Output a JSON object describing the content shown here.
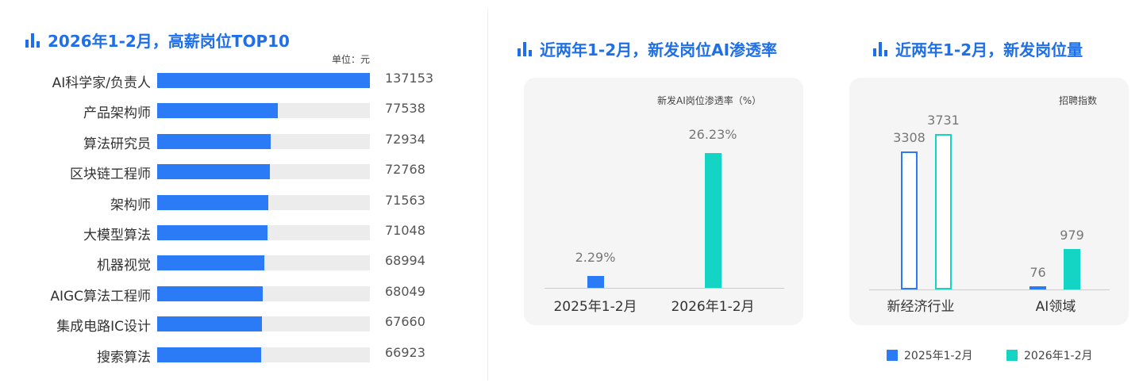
{
  "colors": {
    "accent": "#1f6fe8",
    "series_2025": "#2a7bf5",
    "series_2026": "#14d4c4"
  },
  "chart_data": [
    {
      "type": "bar",
      "orientation": "horizontal",
      "title": "2026年1-2月，高薪岗位TOP10",
      "unit_label": "单位：元",
      "categories": [
        "AI科学家/负责人",
        "产品架构师",
        "算法研究员",
        "区块链工程师",
        "架构师",
        "大模型算法",
        "机器视觉",
        "AIGC算法工程师",
        "集成电路IC设计",
        "搜索算法"
      ],
      "values": [
        137153,
        77538,
        72934,
        72768,
        71563,
        71048,
        68994,
        68049,
        67660,
        66923
      ]
    },
    {
      "type": "bar",
      "title": "近两年1-2月，新发岗位AI渗透率",
      "ylabel": "新发AI岗位渗透率（%）",
      "categories": [
        "2025年1-2月",
        "2026年1-2月"
      ],
      "values": [
        2.29,
        26.23
      ],
      "value_labels": [
        "2.29%",
        "26.23%"
      ]
    },
    {
      "type": "bar",
      "title": "近两年1-2月，新发岗位量",
      "ylabel": "招聘指数",
      "categories": [
        "新经济行业",
        "AI领域"
      ],
      "series": [
        {
          "name": "2025年1-2月",
          "values": [
            3308,
            76
          ]
        },
        {
          "name": "2026年1-2月",
          "values": [
            3731,
            979
          ]
        }
      ]
    }
  ]
}
